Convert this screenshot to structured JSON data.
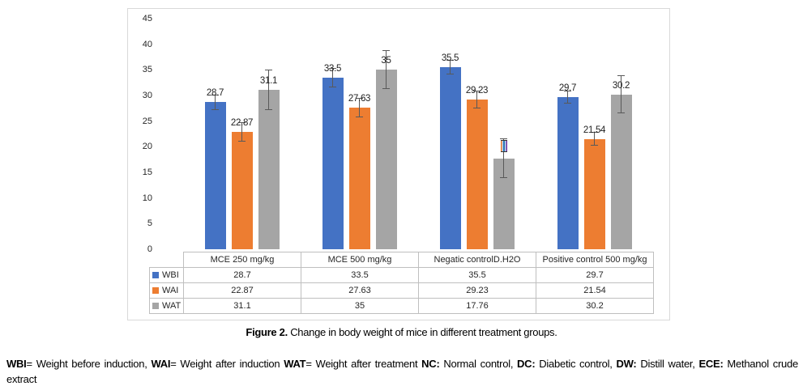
{
  "chart_data": {
    "type": "bar",
    "title": "",
    "categories": [
      "MCE 250 mg/kg",
      "MCE 500 mg/kg",
      "Negatic controlD.H2O",
      "Positive control 500 mg/kg"
    ],
    "series": [
      {
        "name": "WBI",
        "color": "#4472C4",
        "values": [
          28.7,
          33.5,
          35.5,
          29.7
        ],
        "bar_labels": [
          "28.7",
          "33.5",
          "35.5",
          "29.7"
        ],
        "errors": [
          1.5,
          1.9,
          1.4,
          1.3
        ]
      },
      {
        "name": "WAI",
        "color": "#ED7D31",
        "values": [
          22.87,
          27.63,
          29.23,
          21.54
        ],
        "bar_labels": [
          "22.87",
          "27.63",
          "29.23",
          "21.54"
        ],
        "errors": [
          1.9,
          1.9,
          1.7,
          1.4
        ]
      },
      {
        "name": "WAT",
        "color": "#A5A5A5",
        "values": [
          31.1,
          35,
          17.76,
          30.2
        ],
        "bar_labels": [
          "31.1",
          "35",
          "",
          "30.2"
        ],
        "errors": [
          3.9,
          3.8,
          3.9,
          3.7
        ]
      }
    ],
    "y_ticks": [
      45,
      40,
      35,
      30,
      25,
      20,
      15,
      10,
      5,
      0
    ],
    "ylim": [
      0,
      45
    ],
    "grid": false,
    "legend_position": "table-left-column",
    "error_bar_color": "#595959"
  },
  "caption": {
    "label": "Figure 2.",
    "text": "Change in body weight of mice in different treatment groups."
  },
  "footnote": {
    "segments": [
      {
        "text": "WBI",
        "bold": true
      },
      {
        "text": "= Weight before induction, ",
        "bold": false
      },
      {
        "text": "WAI",
        "bold": true
      },
      {
        "text": "= Weight after induction ",
        "bold": false
      },
      {
        "text": "WAT",
        "bold": true
      },
      {
        "text": "= Weight after treatment ",
        "bold": false
      },
      {
        "text": "NC:",
        "bold": true
      },
      {
        "text": " Normal control, ",
        "bold": false
      },
      {
        "text": "DC:",
        "bold": true
      },
      {
        "text": " Diabetic control, ",
        "bold": false
      },
      {
        "text": "DW:",
        "bold": true
      },
      {
        "text": " Distill water, ",
        "bold": false
      },
      {
        "text": "ECE:",
        "bold": true
      },
      {
        "text": " Methanol crude extract",
        "bold": false
      }
    ]
  }
}
